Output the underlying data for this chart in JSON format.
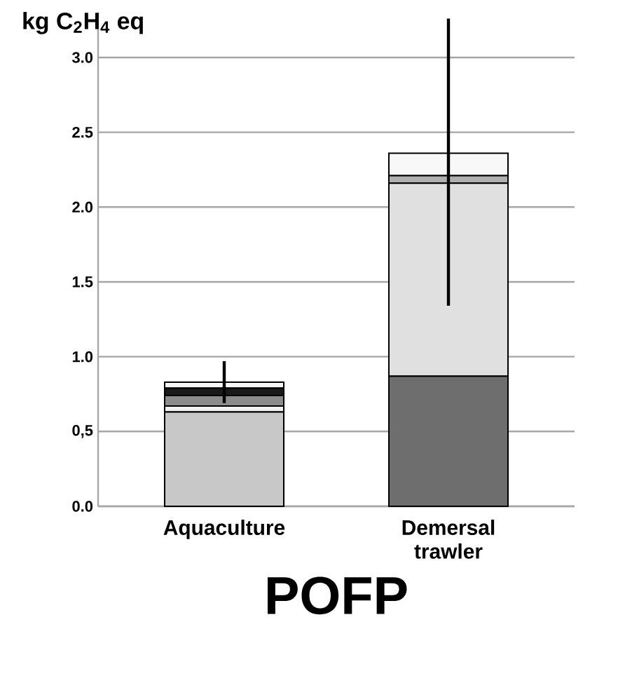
{
  "chart_data": {
    "type": "bar",
    "stacked": true,
    "ylabel": "kg C$_{2}$H$_{4}$ eq",
    "xlabel": "POFP",
    "categories": [
      "Aquaculture",
      "Demersal trawler"
    ],
    "series": [
      {
        "color": "#c8c8c8",
        "values": [
          0.63,
          0
        ]
      },
      {
        "color": "#6e6e6e",
        "values": [
          0,
          0.87
        ]
      },
      {
        "color": "#f0f0f0",
        "values": [
          0.04,
          0
        ]
      },
      {
        "color": "#8c8c8c",
        "values": [
          0.07,
          0
        ]
      },
      {
        "color": "#1a1a1a",
        "values": [
          0.05,
          0
        ]
      },
      {
        "color": "#e0e0e0",
        "values": [
          0,
          1.29
        ]
      },
      {
        "color": "#b0b0b0",
        "values": [
          0,
          0.05
        ]
      },
      {
        "color": "#f8f8f8",
        "values": [
          0.04,
          0.15
        ],
        "errors": [
          [
            0.69,
            0.97
          ],
          [
            1.34,
            3.26
          ]
        ]
      }
    ],
    "ylim": [
      0,
      3.3
    ],
    "yticks": [
      {
        "value": 0,
        "label": "0.0"
      },
      {
        "value": 0.5,
        "label": "0,5"
      },
      {
        "value": 1,
        "label": "1.0"
      },
      {
        "value": 1.5,
        "label": "1.5"
      },
      {
        "value": 2,
        "label": "2.0"
      },
      {
        "value": 2.5,
        "label": "2.5"
      },
      {
        "value": 3,
        "label": "3.0"
      }
    ],
    "grid": "y"
  }
}
